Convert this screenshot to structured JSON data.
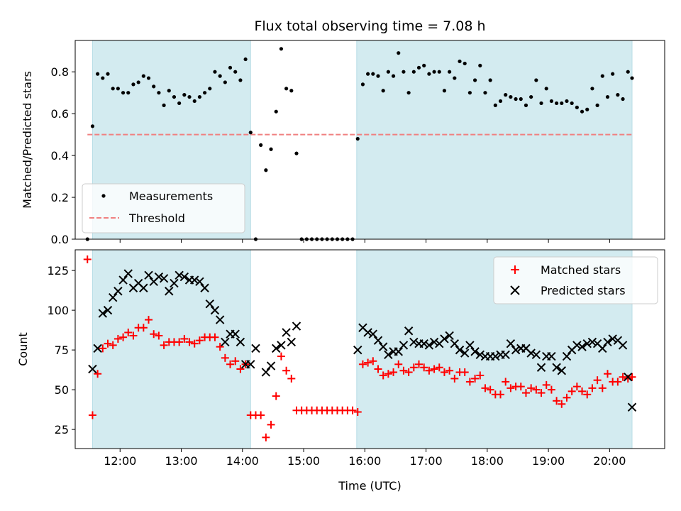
{
  "chart_data": [
    {
      "type": "scatter",
      "title": "Flux total observing time = 7.08 h",
      "xlabel": "",
      "ylabel": "Matched/Predicted stars",
      "xlim": [
        "11:16",
        "20:54"
      ],
      "ylim": [
        0,
        0.95
      ],
      "yticks": [
        0.0,
        0.2,
        0.4,
        0.6,
        0.8
      ],
      "ytick_labels": [
        "0.0",
        "0.2",
        "0.4",
        "0.6",
        "0.8"
      ],
      "shaded_regions": [
        [
          "11:33",
          "14:08"
        ],
        [
          "15:52",
          "20:22"
        ]
      ],
      "shade_color": "#d3ebf0",
      "legend_position": "lower-left",
      "threshold": {
        "name": "Threshold",
        "y": 0.5,
        "x": [
          "11:28",
          "20:22"
        ],
        "color": "#f08080"
      },
      "series": [
        {
          "name": "Measurements",
          "color": "#000000",
          "marker": "dot",
          "x": [
            "11:28",
            "11:33",
            "11:38",
            "11:43",
            "11:48",
            "11:53",
            "11:58",
            "12:03",
            "12:08",
            "12:13",
            "12:18",
            "12:23",
            "12:28",
            "12:33",
            "12:38",
            "12:43",
            "12:48",
            "12:53",
            "12:58",
            "13:03",
            "13:08",
            "13:13",
            "13:18",
            "13:23",
            "13:28",
            "13:33",
            "13:38",
            "13:43",
            "13:48",
            "13:53",
            "13:58",
            "14:03",
            "14:08",
            "14:13",
            "14:18",
            "14:23",
            "14:28",
            "14:33",
            "14:38",
            "14:43",
            "14:48",
            "14:53",
            "14:58",
            "15:03",
            "15:08",
            "15:13",
            "15:18",
            "15:23",
            "15:28",
            "15:33",
            "15:38",
            "15:43",
            "15:48",
            "15:53",
            "15:58",
            "16:03",
            "16:08",
            "16:13",
            "16:18",
            "16:23",
            "16:28",
            "16:33",
            "16:38",
            "16:43",
            "16:48",
            "16:53",
            "16:58",
            "17:03",
            "17:08",
            "17:13",
            "17:18",
            "17:23",
            "17:28",
            "17:33",
            "17:38",
            "17:43",
            "17:48",
            "17:53",
            "17:58",
            "18:03",
            "18:08",
            "18:13",
            "18:18",
            "18:23",
            "18:28",
            "18:33",
            "18:38",
            "18:43",
            "18:48",
            "18:53",
            "18:58",
            "19:03",
            "19:08",
            "19:13",
            "19:18",
            "19:23",
            "19:28",
            "19:33",
            "19:38",
            "19:43",
            "19:48",
            "19:53",
            "19:58",
            "20:03",
            "20:08",
            "20:13",
            "20:18",
            "20:22"
          ],
          "y": [
            0.0,
            0.54,
            0.79,
            0.77,
            0.79,
            0.72,
            0.72,
            0.7,
            0.7,
            0.74,
            0.75,
            0.78,
            0.77,
            0.73,
            0.7,
            0.64,
            0.71,
            0.68,
            0.65,
            0.69,
            0.68,
            0.66,
            0.68,
            0.7,
            0.72,
            0.8,
            0.78,
            0.75,
            0.82,
            0.8,
            0.76,
            0.86,
            0.51,
            0.0,
            0.45,
            0.33,
            0.43,
            0.61,
            0.91,
            0.72,
            0.71,
            0.41,
            0.0,
            0.0,
            0.0,
            0.0,
            0.0,
            0.0,
            0.0,
            0.0,
            0.0,
            0.0,
            0.0,
            0.48,
            0.74,
            0.79,
            0.79,
            0.78,
            0.71,
            0.8,
            0.78,
            0.89,
            0.8,
            0.7,
            0.8,
            0.82,
            0.83,
            0.79,
            0.8,
            0.8,
            0.71,
            0.8,
            0.77,
            0.85,
            0.84,
            0.7,
            0.76,
            0.83,
            0.7,
            0.76,
            0.64,
            0.66,
            0.69,
            0.68,
            0.67,
            0.67,
            0.64,
            0.68,
            0.76,
            0.65,
            0.72,
            0.66,
            0.65,
            0.65,
            0.66,
            0.65,
            0.63,
            0.61,
            0.62,
            0.72,
            0.64,
            0.78,
            0.68,
            0.79,
            0.69,
            0.67,
            0.8,
            0.77
          ]
        }
      ]
    },
    {
      "type": "scatter",
      "title": "",
      "xlabel": "Time (UTC)",
      "ylabel": "Count",
      "xlim": [
        "11:16",
        "20:54"
      ],
      "ylim": [
        13,
        138
      ],
      "yticks": [
        25,
        50,
        75,
        100,
        125
      ],
      "ytick_labels": [
        "25",
        "50",
        "75",
        "100",
        "125"
      ],
      "xticks": [
        "12:00",
        "13:00",
        "14:00",
        "15:00",
        "16:00",
        "17:00",
        "18:00",
        "19:00",
        "20:00"
      ],
      "shaded_regions": [
        [
          "11:33",
          "14:08"
        ],
        [
          "15:52",
          "20:22"
        ]
      ],
      "shade_color": "#d3ebf0",
      "legend_position": "top-right",
      "series": [
        {
          "name": "Matched stars",
          "color": "#ff0000",
          "marker": "plus",
          "x": [
            "11:28",
            "11:33",
            "11:38",
            "11:43",
            "11:48",
            "11:53",
            "11:58",
            "12:03",
            "12:08",
            "12:13",
            "12:18",
            "12:23",
            "12:28",
            "12:33",
            "12:38",
            "12:43",
            "12:48",
            "12:53",
            "12:58",
            "13:03",
            "13:08",
            "13:13",
            "13:18",
            "13:23",
            "13:28",
            "13:33",
            "13:38",
            "13:43",
            "13:48",
            "13:53",
            "13:58",
            "14:03",
            "14:08",
            "14:13",
            "14:18",
            "14:23",
            "14:28",
            "14:33",
            "14:38",
            "14:43",
            "14:48",
            "14:53",
            "14:58",
            "15:03",
            "15:08",
            "15:13",
            "15:18",
            "15:23",
            "15:28",
            "15:33",
            "15:38",
            "15:43",
            "15:48",
            "15:53",
            "15:58",
            "16:03",
            "16:08",
            "16:13",
            "16:18",
            "16:23",
            "16:28",
            "16:33",
            "16:38",
            "16:43",
            "16:48",
            "16:53",
            "16:58",
            "17:03",
            "17:08",
            "17:13",
            "17:18",
            "17:23",
            "17:28",
            "17:33",
            "17:38",
            "17:43",
            "17:48",
            "17:53",
            "17:58",
            "18:03",
            "18:08",
            "18:13",
            "18:18",
            "18:23",
            "18:28",
            "18:33",
            "18:38",
            "18:43",
            "18:48",
            "18:53",
            "18:58",
            "19:03",
            "19:08",
            "19:13",
            "19:18",
            "19:23",
            "19:28",
            "19:33",
            "19:38",
            "19:43",
            "19:48",
            "19:53",
            "19:58",
            "20:03",
            "20:08",
            "20:13",
            "20:18",
            "20:22"
          ],
          "y": [
            132,
            34,
            60,
            76,
            79,
            78,
            82,
            83,
            86,
            84,
            89,
            89,
            94,
            85,
            84,
            78,
            80,
            80,
            80,
            82,
            80,
            79,
            81,
            83,
            83,
            83,
            77,
            70,
            66,
            68,
            63,
            66,
            34,
            34,
            34,
            20,
            28,
            46,
            71,
            62,
            57,
            37,
            37,
            37,
            37,
            37,
            37,
            37,
            37,
            37,
            37,
            37,
            37,
            36,
            66,
            67,
            68,
            63,
            59,
            60,
            61,
            66,
            62,
            61,
            64,
            66,
            64,
            62,
            63,
            64,
            61,
            62,
            57,
            61,
            61,
            55,
            57,
            59,
            51,
            50,
            47,
            47,
            55,
            51,
            52,
            52,
            48,
            51,
            50,
            48,
            53,
            50,
            43,
            41,
            45,
            49,
            52,
            49,
            47,
            51,
            56,
            51,
            60,
            55,
            55,
            58,
            57,
            58
          ]
        },
        {
          "name": "Predicted stars",
          "color": "#000000",
          "marker": "cross",
          "x": [
            "11:33",
            "11:38",
            "11:43",
            "11:48",
            "11:53",
            "11:58",
            "12:03",
            "12:08",
            "12:13",
            "12:18",
            "12:23",
            "12:28",
            "12:33",
            "12:38",
            "12:43",
            "12:48",
            "12:53",
            "12:58",
            "13:03",
            "13:08",
            "13:13",
            "13:18",
            "13:23",
            "13:28",
            "13:33",
            "13:38",
            "13:43",
            "13:48",
            "13:53",
            "13:58",
            "14:03",
            "14:08",
            "14:13",
            "14:23",
            "14:28",
            "14:33",
            "14:38",
            "14:43",
            "14:48",
            "14:53",
            "15:53",
            "15:58",
            "16:03",
            "16:08",
            "16:13",
            "16:18",
            "16:23",
            "16:28",
            "16:33",
            "16:38",
            "16:43",
            "16:48",
            "16:53",
            "16:58",
            "17:03",
            "17:08",
            "17:13",
            "17:18",
            "17:23",
            "17:28",
            "17:33",
            "17:38",
            "17:43",
            "17:48",
            "17:53",
            "17:58",
            "18:03",
            "18:08",
            "18:13",
            "18:18",
            "18:23",
            "18:28",
            "18:33",
            "18:38",
            "18:43",
            "18:48",
            "18:53",
            "18:58",
            "19:03",
            "19:08",
            "19:13",
            "19:18",
            "19:23",
            "19:28",
            "19:33",
            "19:38",
            "19:43",
            "19:48",
            "19:53",
            "19:58",
            "20:03",
            "20:08",
            "20:13",
            "20:18",
            "20:22"
          ],
          "y": [
            63,
            76,
            98,
            100,
            108,
            112,
            119,
            123,
            114,
            117,
            114,
            122,
            118,
            121,
            120,
            112,
            117,
            122,
            121,
            119,
            119,
            118,
            114,
            104,
            100,
            94,
            80,
            85,
            85,
            80,
            66,
            66,
            76,
            61,
            65,
            76,
            78,
            86,
            80,
            90,
            75,
            89,
            86,
            85,
            81,
            77,
            72,
            74,
            74,
            78,
            87,
            80,
            79,
            79,
            78,
            80,
            79,
            82,
            84,
            79,
            75,
            73,
            78,
            74,
            72,
            71,
            71,
            71,
            72,
            72,
            79,
            75,
            76,
            76,
            73,
            72,
            64,
            71,
            71,
            64,
            62,
            71,
            75,
            78,
            77,
            79,
            80,
            79,
            76,
            80,
            82,
            81,
            78,
            58,
            39
          ]
        }
      ]
    }
  ]
}
